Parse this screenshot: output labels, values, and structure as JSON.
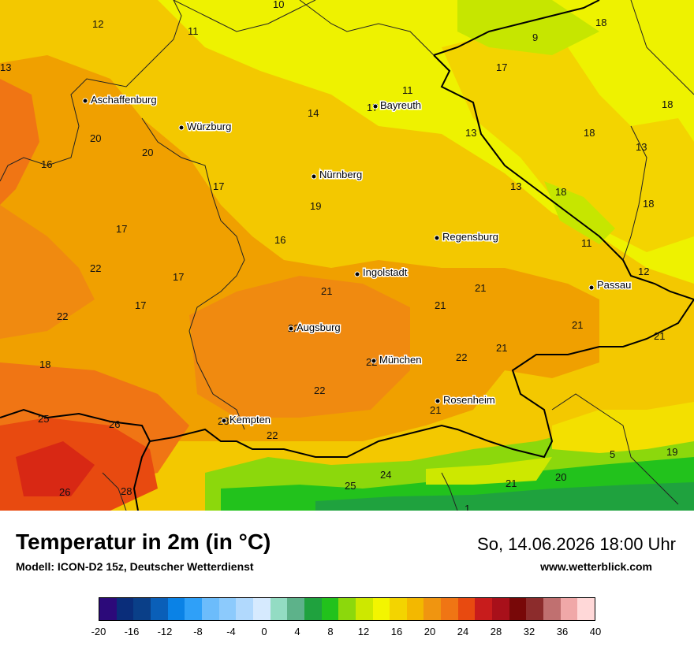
{
  "map": {
    "cities": [
      {
        "name": "Aschaffenburg"
      },
      {
        "name": "Würzburg"
      },
      {
        "name": "Bayreuth"
      },
      {
        "name": "Nürnberg"
      },
      {
        "name": "Regensburg"
      },
      {
        "name": "Ingolstadt"
      },
      {
        "name": "Passau"
      },
      {
        "name": "Augsburg"
      },
      {
        "name": "München"
      },
      {
        "name": "Rosenheim"
      },
      {
        "name": "Kempten"
      }
    ],
    "values": [
      "10",
      "12",
      "11",
      "13",
      "9",
      "18",
      "17",
      "11",
      "18",
      "14",
      "17",
      "13",
      "18",
      "20",
      "20",
      "13",
      "16",
      "17",
      "13",
      "18",
      "19",
      "18",
      "17",
      "16",
      "11",
      "22",
      "17",
      "21",
      "12",
      "21",
      "21",
      "17",
      "22",
      "21",
      "22",
      "21",
      "21",
      "18",
      "22",
      "22",
      "22",
      "21",
      "25",
      "26",
      "23",
      "22",
      "5",
      "19",
      "24",
      "21",
      "20",
      "25",
      "26",
      "28",
      "1"
    ]
  },
  "footer": {
    "title": "Temperatur in 2m (in °C)",
    "subtitle": "Modell: ICON-D2 15z, Deutscher Wetterdienst",
    "datetime": "So, 14.06.2026 18:00 Uhr",
    "website": "www.wetterblick.com"
  },
  "legend": {
    "ticks": [
      "-20",
      "-16",
      "-12",
      "-8",
      "-4",
      "0",
      "4",
      "8",
      "12",
      "16",
      "20",
      "24",
      "28",
      "32",
      "36",
      "40"
    ],
    "colors": [
      "#2c0a7a",
      "#0a2d7a",
      "#0a3f88",
      "#0a5fb8",
      "#0a82e6",
      "#2fa0f8",
      "#6cbcfb",
      "#8ccafc",
      "#b1d9fd",
      "#d6eafe",
      "#93dcc3",
      "#5db28a",
      "#1fa23e",
      "#22c21c",
      "#8cd80c",
      "#cde800",
      "#f3f500",
      "#f3d400",
      "#f3b800",
      "#f09510",
      "#f07514",
      "#e84a10",
      "#c81c1c",
      "#a8101a",
      "#780808",
      "#8c2c2c",
      "#c07070",
      "#f0a8a8",
      "#ffd8d8"
    ]
  }
}
